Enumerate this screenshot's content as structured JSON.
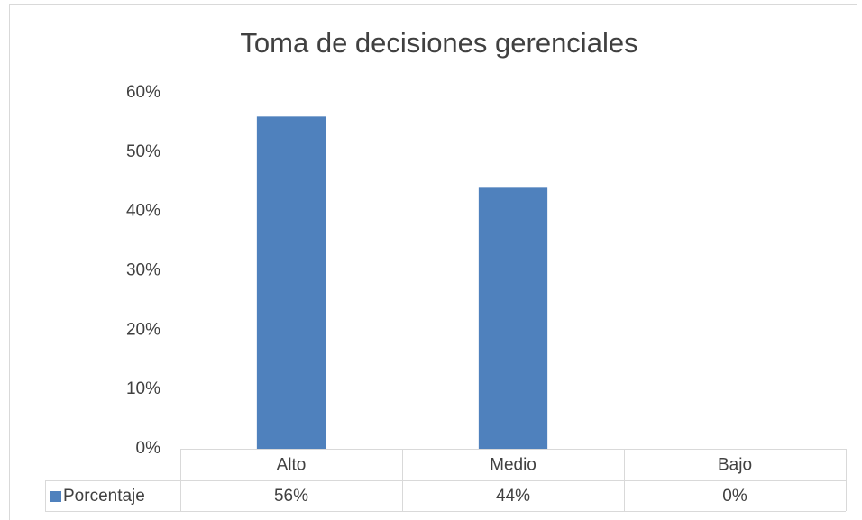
{
  "chart_data": {
    "type": "bar",
    "title": "Toma de decisiones gerenciales",
    "categories": [
      "Alto",
      "Medio",
      "Bajo"
    ],
    "series": [
      {
        "name": "Porcentaje",
        "color": "#4f81bd",
        "values": [
          56,
          44,
          0
        ],
        "value_labels": [
          "56%",
          "44%",
          "0%"
        ]
      }
    ],
    "ylim": [
      0,
      60
    ],
    "yticks": [
      {
        "value": 0,
        "label": "0%"
      },
      {
        "value": 10,
        "label": "10%"
      },
      {
        "value": 20,
        "label": "20%"
      },
      {
        "value": 30,
        "label": "30%"
      },
      {
        "value": 40,
        "label": "40%"
      },
      {
        "value": 50,
        "label": "50%"
      },
      {
        "value": 60,
        "label": "60%"
      }
    ],
    "grid": false,
    "data_table": true
  }
}
